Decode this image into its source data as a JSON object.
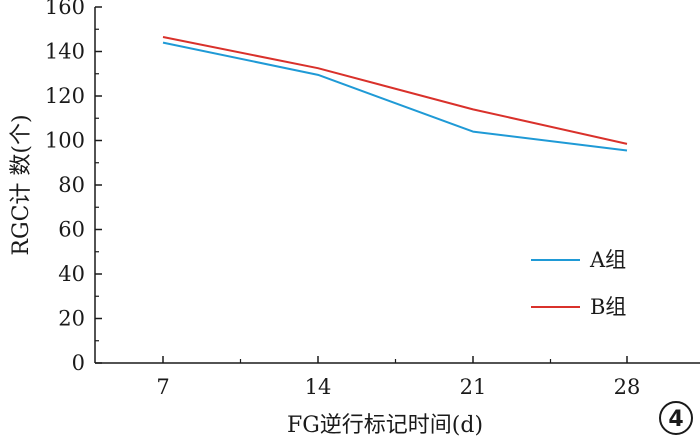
{
  "chart_data": {
    "type": "line",
    "x": [
      7,
      14,
      21,
      28
    ],
    "xticks": [
      "7",
      "14",
      "21",
      "28"
    ],
    "yticks": [
      "0",
      "20",
      "40",
      "60",
      "80",
      "100",
      "120",
      "140",
      "160"
    ],
    "ylim": [
      0,
      160
    ],
    "xlabel": "FG逆行标记时间(d)",
    "ylabel": "RGC计 数(个)",
    "legend_position": "center-right",
    "grid": false,
    "series": [
      {
        "name": "A组",
        "color": "#1f9ad6",
        "values": [
          144,
          129.5,
          104,
          95.5
        ]
      },
      {
        "name": "B组",
        "color": "#d9312b",
        "values": [
          146.5,
          132.5,
          114,
          98.5
        ]
      }
    ]
  },
  "panel_label": "4"
}
